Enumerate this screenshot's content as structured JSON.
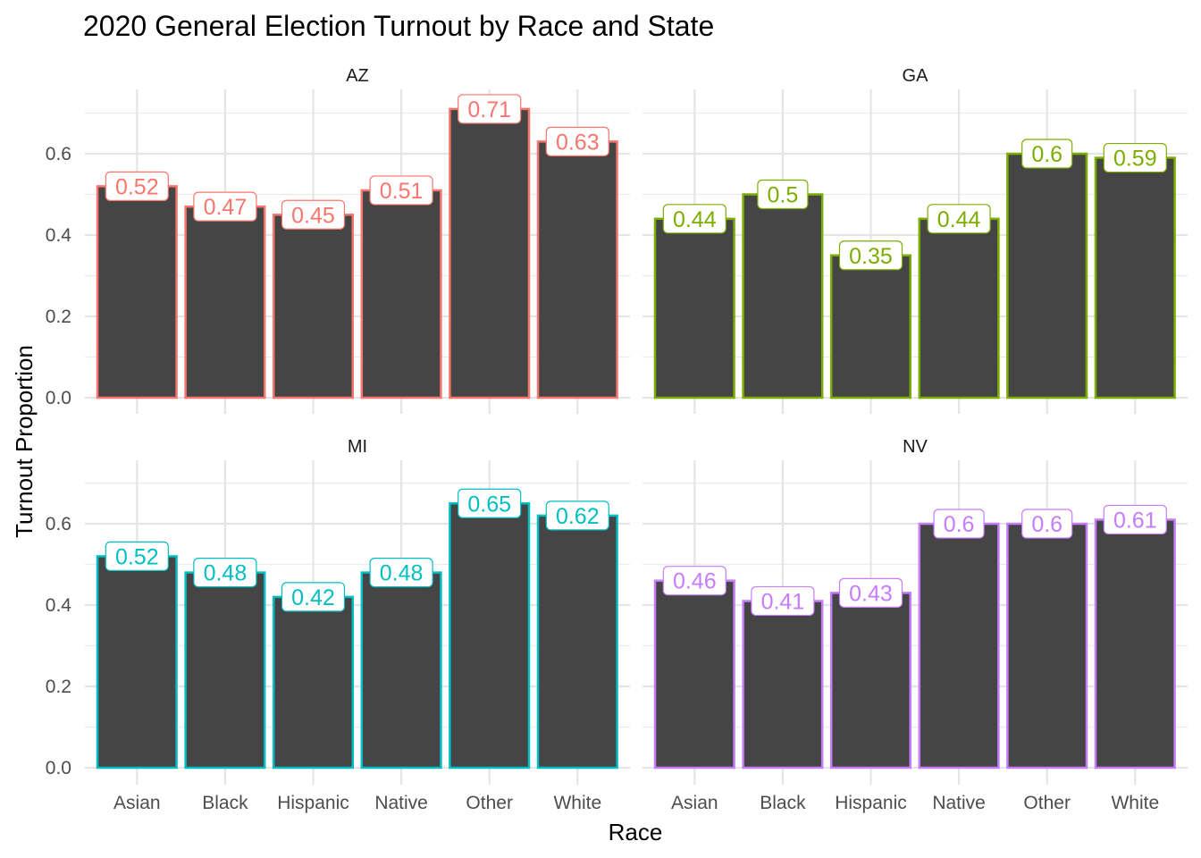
{
  "chart_data": {
    "type": "bar",
    "title": "2020 General Election Turnout by Race and State",
    "xlabel": "Race",
    "ylabel": "Turnout Proportion",
    "categories": [
      "Asian",
      "Black",
      "Hispanic",
      "Native",
      "Other",
      "White"
    ],
    "y_ticks": [
      "0.0",
      "0.2",
      "0.4",
      "0.6"
    ],
    "ylim": [
      0,
      0.7
    ],
    "grid": true,
    "facets": [
      {
        "name": "AZ",
        "color": "#F8766D",
        "values": [
          0.52,
          0.47,
          0.45,
          0.51,
          0.71,
          0.63
        ],
        "labels": [
          "0.52",
          "0.47",
          "0.45",
          "0.51",
          "0.71",
          "0.63"
        ]
      },
      {
        "name": "GA",
        "color": "#7CAE00",
        "values": [
          0.44,
          0.5,
          0.35,
          0.44,
          0.6,
          0.59
        ],
        "labels": [
          "0.44",
          "0.5",
          "0.35",
          "0.44",
          "0.6",
          "0.59"
        ]
      },
      {
        "name": "MI",
        "color": "#00BFC4",
        "values": [
          0.52,
          0.48,
          0.42,
          0.48,
          0.65,
          0.62
        ],
        "labels": [
          "0.52",
          "0.48",
          "0.42",
          "0.48",
          "0.65",
          "0.62"
        ]
      },
      {
        "name": "NV",
        "color": "#C77CFF",
        "values": [
          0.46,
          0.41,
          0.43,
          0.6,
          0.6,
          0.61
        ],
        "labels": [
          "0.46",
          "0.41",
          "0.43",
          "0.6",
          "0.6",
          "0.61"
        ]
      }
    ],
    "bar_fill": "#454545"
  }
}
